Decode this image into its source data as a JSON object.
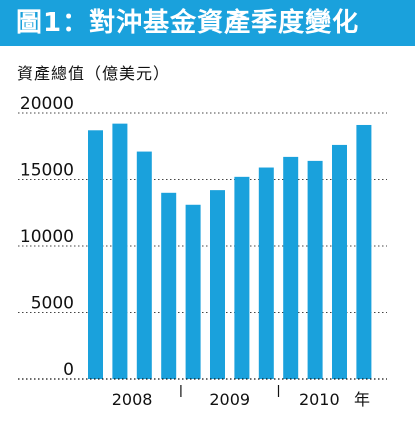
{
  "title": "圖1：對沖基金資產季度變化",
  "colors": {
    "title_bar": "#1aa1dc",
    "bar": "#1aa1dc",
    "axis": "#111111",
    "grid": "#444444"
  },
  "chart_data": {
    "type": "bar",
    "ylabel": "資產總值（億美元）",
    "ylim": [
      0,
      20000
    ],
    "yticks": [
      0,
      5000,
      10000,
      15000,
      20000
    ],
    "grid": "dotted horizontal",
    "categories": [
      "2008-Q1",
      "2008-Q2",
      "2008-Q3",
      "2008-Q4",
      "2009-Q1",
      "2009-Q2",
      "2009-Q3",
      "2009-Q4",
      "2010-Q1",
      "2010-Q2",
      "2010-Q3",
      "2010-Q4"
    ],
    "values": [
      18700,
      19200,
      17100,
      14000,
      13100,
      14200,
      15200,
      15900,
      16700,
      16400,
      17600,
      19100
    ],
    "x_groups": [
      {
        "label": "2008",
        "start": 0,
        "end": 3
      },
      {
        "label": "2009",
        "start": 4,
        "end": 7
      },
      {
        "label": "2010",
        "start": 8,
        "end": 11
      }
    ],
    "x_unit": "年"
  }
}
